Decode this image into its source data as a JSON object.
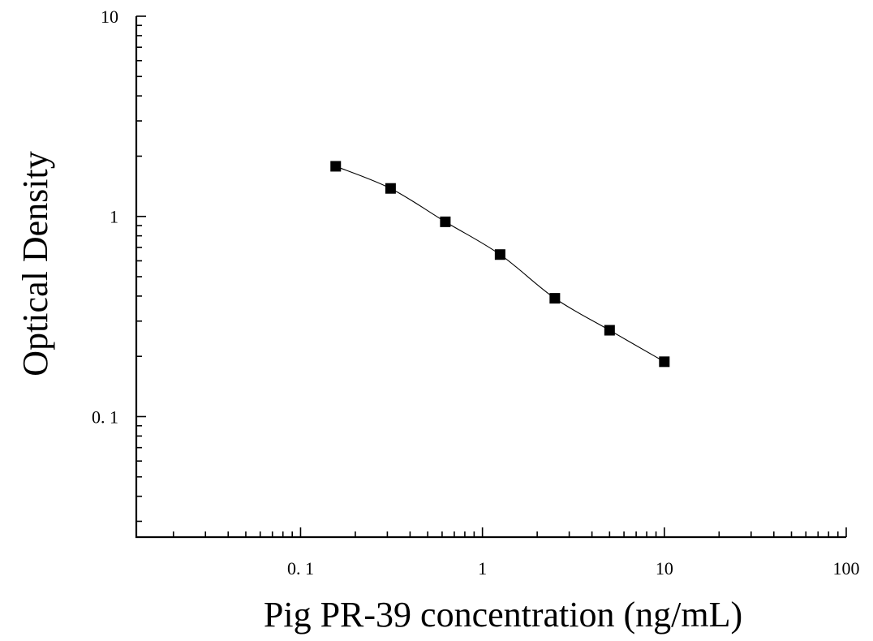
{
  "chart_data": {
    "type": "scatter",
    "title": "",
    "xlabel": "Pig PR-39 concentration (ng/mL)",
    "ylabel": "Optical Density",
    "xscale": "log",
    "yscale": "log",
    "xlim": [
      0.0125,
      100
    ],
    "ylim": [
      0.025,
      10
    ],
    "x_tick_labels": [
      "0. 1",
      "1",
      "10",
      "100"
    ],
    "x_tick_values": [
      0.1,
      1,
      10,
      100
    ],
    "y_tick_labels": [
      "0. 1",
      "1",
      "10"
    ],
    "y_tick_values": [
      0.1,
      1,
      10
    ],
    "grid": false,
    "marker": "square",
    "color": "#000000",
    "series": [
      {
        "x": [
          0.156,
          0.3125,
          0.625,
          1.25,
          2.5,
          5,
          10
        ],
        "y": [
          1.78,
          1.38,
          0.94,
          0.645,
          0.39,
          0.27,
          0.188
        ],
        "fit": "smooth curve"
      }
    ]
  }
}
